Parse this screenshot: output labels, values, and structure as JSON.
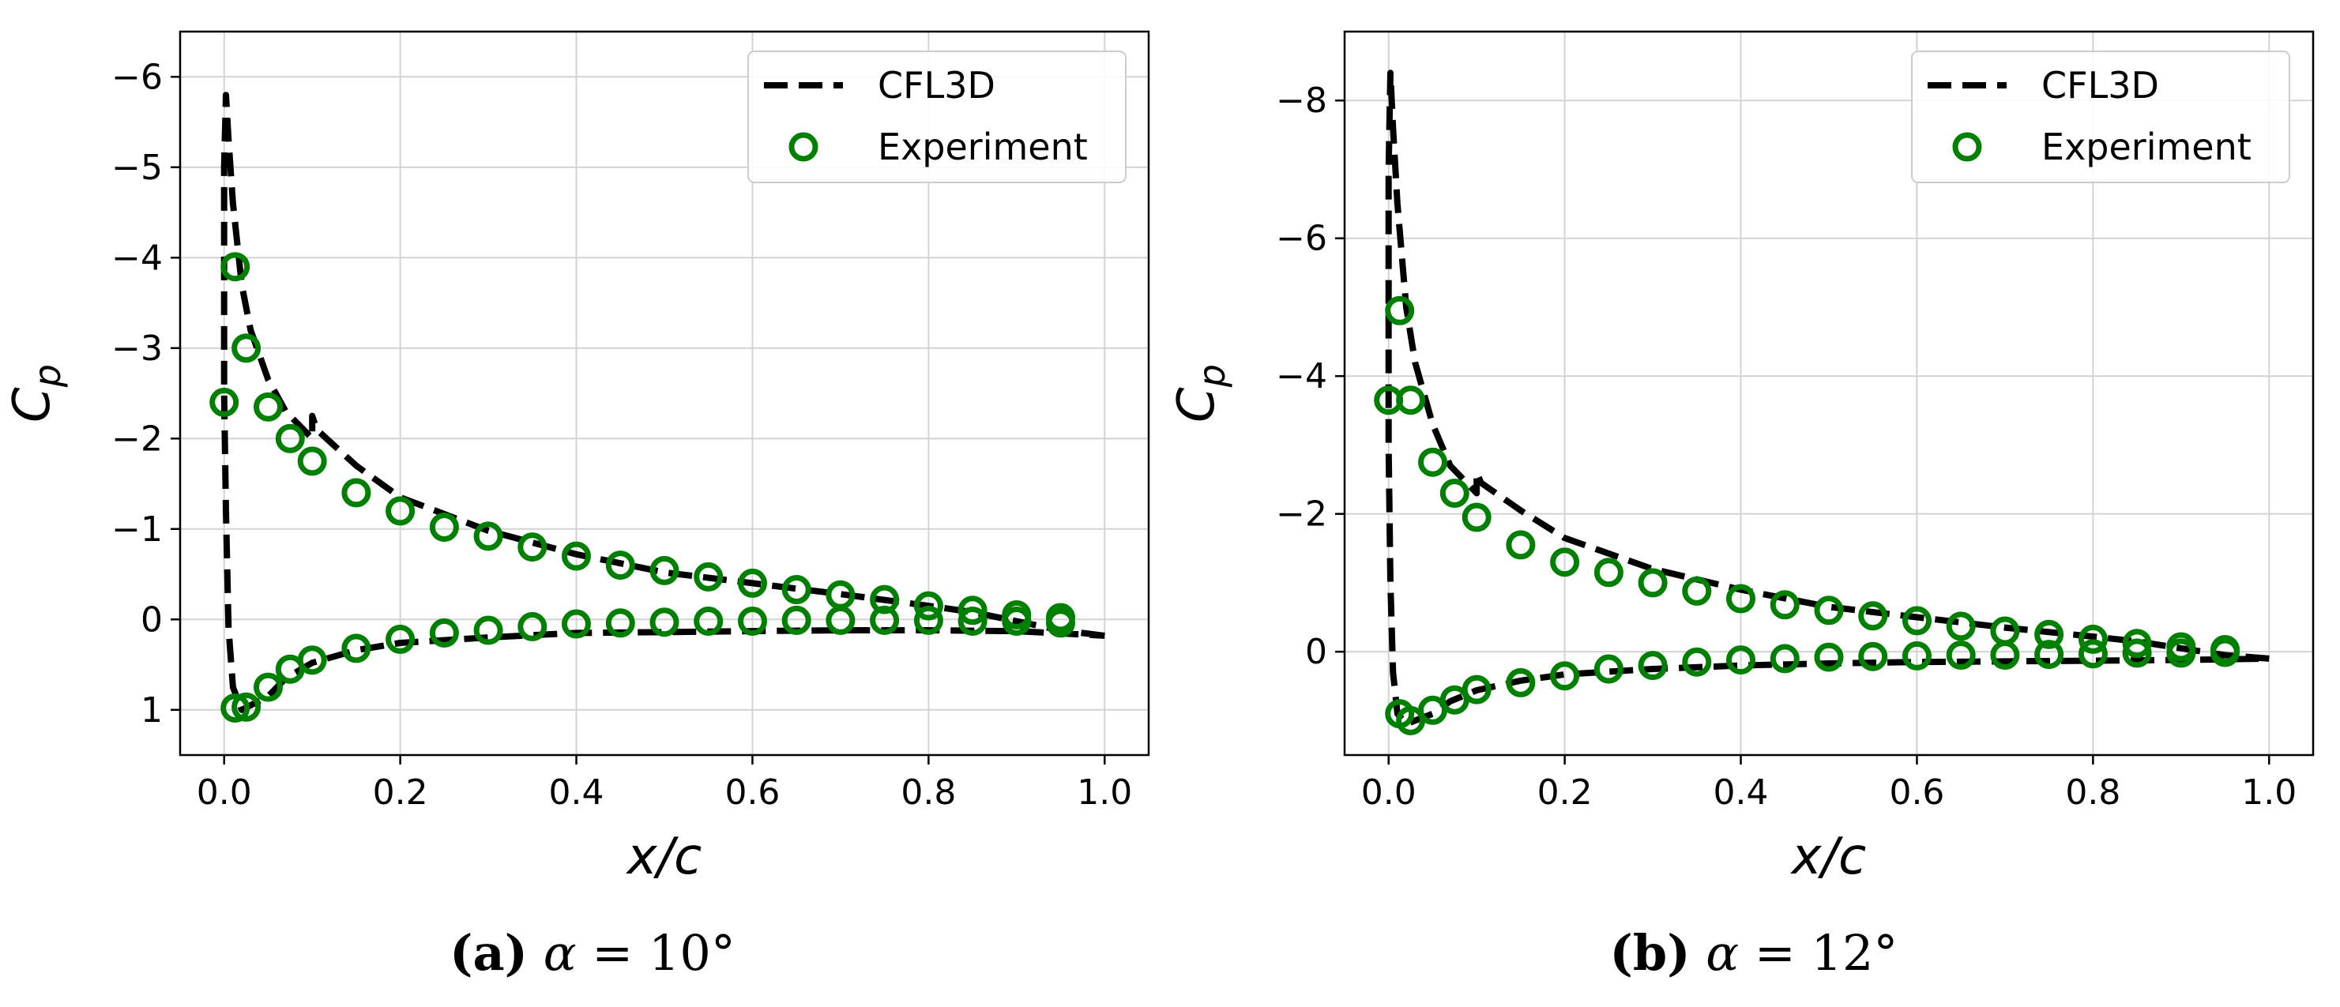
{
  "chart_data": [
    {
      "type": "line",
      "panel_label": "(a)",
      "caption": "α = 10°",
      "xlabel": "x/c",
      "ylabel": "C_p",
      "ylabel_main": "C",
      "ylabel_sub": "p",
      "xlim": [
        -0.05,
        1.05
      ],
      "ylim": [
        1.5,
        -6.5
      ],
      "y_inverted": true,
      "grid": true,
      "legend_position": "top-right",
      "x_ticks": [
        0.0,
        0.2,
        0.4,
        0.6,
        0.8,
        1.0
      ],
      "x_tick_labels": [
        "0.0",
        "0.2",
        "0.4",
        "0.6",
        "0.8",
        "1.0"
      ],
      "y_ticks": [
        -6,
        -5,
        -4,
        -3,
        -2,
        -1,
        0,
        1
      ],
      "y_tick_labels": [
        "−6",
        "−5",
        "−4",
        "−3",
        "−2",
        "−1",
        "0",
        "1"
      ],
      "series": [
        {
          "name": "CFL3D",
          "style": "dashed",
          "color": "#000000",
          "x": [
            1.0,
            0.95,
            0.9,
            0.85,
            0.8,
            0.7,
            0.6,
            0.5,
            0.4,
            0.3,
            0.2,
            0.15,
            0.105,
            0.1,
            0.1,
            0.07,
            0.05,
            0.03,
            0.02,
            0.01,
            0.005,
            0.002,
            0.0,
            0.0,
            0.002,
            0.005,
            0.01,
            0.02,
            0.03,
            0.05,
            0.07,
            0.1,
            0.15,
            0.2,
            0.3,
            0.4,
            0.5,
            0.6,
            0.7,
            0.8,
            0.9,
            1.0
          ],
          "y": [
            0.18,
            0.12,
            0.02,
            -0.08,
            -0.15,
            -0.28,
            -0.4,
            -0.52,
            -0.72,
            -0.98,
            -1.35,
            -1.7,
            -2.1,
            -2.25,
            -2.0,
            -2.3,
            -2.65,
            -3.2,
            -3.7,
            -4.6,
            -5.3,
            -5.8,
            -5.0,
            -2.5,
            -1.2,
            0.1,
            0.75,
            1.0,
            0.95,
            0.85,
            0.65,
            0.48,
            0.34,
            0.26,
            0.2,
            0.15,
            0.14,
            0.13,
            0.12,
            0.12,
            0.13,
            0.18
          ]
        },
        {
          "name": "Experiment",
          "style": "circle-markers",
          "color": "#008000",
          "x": [
            0.0,
            0.0125,
            0.025,
            0.05,
            0.075,
            0.1,
            0.15,
            0.2,
            0.25,
            0.3,
            0.35,
            0.4,
            0.45,
            0.5,
            0.55,
            0.6,
            0.65,
            0.7,
            0.75,
            0.8,
            0.85,
            0.9,
            0.95,
            0.0125,
            0.025,
            0.05,
            0.075,
            0.1,
            0.15,
            0.2,
            0.25,
            0.3,
            0.35,
            0.4,
            0.45,
            0.5,
            0.55,
            0.6,
            0.65,
            0.7,
            0.75,
            0.8,
            0.85,
            0.9,
            0.95
          ],
          "y": [
            -2.4,
            -3.9,
            -3.0,
            -2.35,
            -2.0,
            -1.75,
            -1.4,
            -1.2,
            -1.02,
            -0.92,
            -0.8,
            -0.7,
            -0.6,
            -0.54,
            -0.47,
            -0.4,
            -0.33,
            -0.27,
            -0.22,
            -0.15,
            -0.1,
            -0.05,
            -0.02,
            0.98,
            0.97,
            0.75,
            0.55,
            0.45,
            0.32,
            0.22,
            0.15,
            0.12,
            0.08,
            0.05,
            0.04,
            0.03,
            0.02,
            0.02,
            0.01,
            0.01,
            0.01,
            0.01,
            0.02,
            0.02,
            0.04
          ]
        }
      ]
    },
    {
      "type": "line",
      "panel_label": "(b)",
      "caption": "α = 12°",
      "xlabel": "x/c",
      "ylabel": "C_p",
      "ylabel_main": "C",
      "ylabel_sub": "p",
      "xlim": [
        -0.05,
        1.05
      ],
      "ylim": [
        1.5,
        -9.0
      ],
      "y_inverted": true,
      "grid": true,
      "legend_position": "top-right",
      "x_ticks": [
        0.0,
        0.2,
        0.4,
        0.6,
        0.8,
        1.0
      ],
      "x_tick_labels": [
        "0.0",
        "0.2",
        "0.4",
        "0.6",
        "0.8",
        "1.0"
      ],
      "y_ticks": [
        -8,
        -6,
        -4,
        -2,
        0
      ],
      "y_tick_labels": [
        "−8",
        "−6",
        "−4",
        "−2",
        "0"
      ],
      "series": [
        {
          "name": "CFL3D",
          "style": "dashed",
          "color": "#000000",
          "x": [
            1.0,
            0.95,
            0.9,
            0.85,
            0.8,
            0.7,
            0.6,
            0.5,
            0.4,
            0.3,
            0.2,
            0.15,
            0.105,
            0.1,
            0.1,
            0.07,
            0.05,
            0.03,
            0.02,
            0.01,
            0.005,
            0.002,
            0.0,
            0.0,
            0.002,
            0.005,
            0.01,
            0.02,
            0.03,
            0.05,
            0.07,
            0.1,
            0.15,
            0.2,
            0.3,
            0.4,
            0.5,
            0.6,
            0.7,
            0.8,
            0.9,
            1.0
          ],
          "y": [
            0.1,
            0.05,
            -0.05,
            -0.15,
            -0.22,
            -0.35,
            -0.5,
            -0.65,
            -0.9,
            -1.2,
            -1.65,
            -2.05,
            -2.45,
            -2.6,
            -2.3,
            -2.7,
            -3.3,
            -4.2,
            -5.0,
            -6.5,
            -7.6,
            -8.4,
            -7.0,
            -3.0,
            -1.0,
            0.3,
            0.9,
            1.05,
            1.0,
            0.9,
            0.72,
            0.56,
            0.42,
            0.33,
            0.25,
            0.2,
            0.17,
            0.15,
            0.14,
            0.13,
            0.12,
            0.1
          ]
        },
        {
          "name": "Experiment",
          "style": "circle-markers",
          "color": "#008000",
          "x": [
            0.0,
            0.0125,
            0.025,
            0.05,
            0.075,
            0.1,
            0.15,
            0.2,
            0.25,
            0.3,
            0.35,
            0.4,
            0.45,
            0.5,
            0.55,
            0.6,
            0.65,
            0.7,
            0.75,
            0.8,
            0.85,
            0.9,
            0.95,
            0.0125,
            0.025,
            0.05,
            0.075,
            0.1,
            0.15,
            0.2,
            0.25,
            0.3,
            0.35,
            0.4,
            0.45,
            0.5,
            0.55,
            0.6,
            0.65,
            0.7,
            0.75,
            0.8,
            0.85,
            0.9,
            0.95
          ],
          "y": [
            -3.65,
            -4.95,
            -3.65,
            -2.75,
            -2.3,
            -1.95,
            -1.55,
            -1.3,
            -1.15,
            -1.0,
            -0.88,
            -0.77,
            -0.68,
            -0.6,
            -0.52,
            -0.45,
            -0.37,
            -0.3,
            -0.25,
            -0.18,
            -0.12,
            -0.07,
            -0.03,
            0.9,
            1.0,
            0.85,
            0.7,
            0.55,
            0.45,
            0.35,
            0.25,
            0.2,
            0.15,
            0.12,
            0.1,
            0.08,
            0.07,
            0.06,
            0.05,
            0.05,
            0.04,
            0.03,
            0.02,
            0.02,
            0.01
          ]
        }
      ]
    }
  ],
  "captions": [
    {
      "label": "(a)",
      "symbol": "α",
      "text": " = 10°"
    },
    {
      "label": "(b)",
      "symbol": "α",
      "text": " = 12°"
    }
  ]
}
